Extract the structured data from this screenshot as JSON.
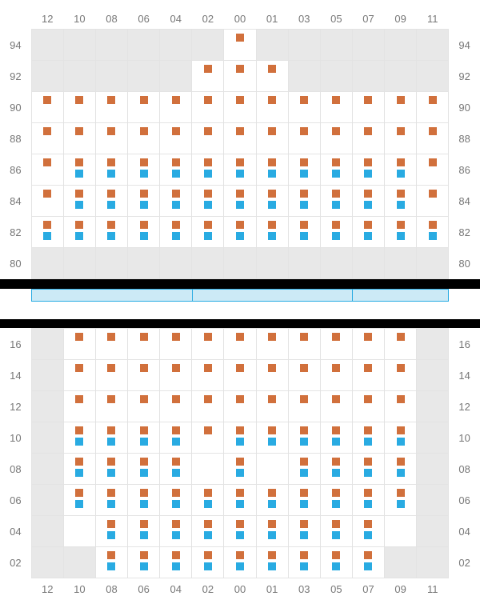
{
  "colors": {
    "orange": "#d1703c",
    "blue": "#29abe2",
    "empty": "#e8e8e8",
    "grid": "#e3e3e3",
    "bar": "#cceaf6",
    "text": "#777"
  },
  "marker": {
    "w": 10,
    "h": 10
  },
  "cell": {
    "w": 40,
    "h": 38
  },
  "columns": [
    "12",
    "10",
    "08",
    "06",
    "04",
    "02",
    "00",
    "01",
    "03",
    "05",
    "07",
    "09",
    "11"
  ],
  "upper": {
    "rows": [
      "94",
      "92",
      "90",
      "88",
      "86",
      "84",
      "82",
      "80"
    ],
    "cells": [
      [
        "E",
        "E",
        "E",
        "E",
        "E",
        "E",
        "O",
        "E",
        "E",
        "E",
        "E",
        "E",
        "E"
      ],
      [
        "E",
        "E",
        "E",
        "E",
        "E",
        "O",
        "O",
        "O",
        "E",
        "E",
        "E",
        "E",
        "E"
      ],
      [
        "O",
        "O",
        "O",
        "O",
        "O",
        "O",
        "O",
        "O",
        "O",
        "O",
        "O",
        "O",
        "O"
      ],
      [
        "O",
        "O",
        "O",
        "O",
        "O",
        "O",
        "O",
        "O",
        "O",
        "O",
        "O",
        "O",
        "O"
      ],
      [
        "O",
        "OB",
        "OB",
        "OB",
        "OB",
        "OB",
        "OB",
        "OB",
        "OB",
        "OB",
        "OB",
        "OB",
        "O"
      ],
      [
        "O",
        "OB",
        "OB",
        "OB",
        "OB",
        "OB",
        "OB",
        "OB",
        "OB",
        "OB",
        "OB",
        "OB",
        "O"
      ],
      [
        "OB",
        "OB",
        "OB",
        "OB",
        "OB",
        "OB",
        "OB",
        "OB",
        "OB",
        "OB",
        "OB",
        "OB",
        "OB"
      ],
      [
        "E",
        "E",
        "E",
        "E",
        "E",
        "E",
        "E",
        "E",
        "E",
        "E",
        "E",
        "E",
        "E"
      ]
    ]
  },
  "barSegments": 3,
  "lower": {
    "rows": [
      "16",
      "14",
      "12",
      "10",
      "08",
      "06",
      "04",
      "02"
    ],
    "cells": [
      [
        "E",
        "O",
        "O",
        "O",
        "O",
        "O",
        "O",
        "O",
        "O",
        "O",
        "O",
        "O",
        "E"
      ],
      [
        "E",
        "O",
        "O",
        "O",
        "O",
        "O",
        "O",
        "O",
        "O",
        "O",
        "O",
        "O",
        "E"
      ],
      [
        "E",
        "O",
        "O",
        "O",
        "O",
        "O",
        "O",
        "O",
        "O",
        "O",
        "O",
        "O",
        "E"
      ],
      [
        "E",
        "OB",
        "OB",
        "OB",
        "OB",
        "O",
        "OB",
        "OB",
        "OB",
        "OB",
        "OB",
        "OB",
        "E"
      ],
      [
        "E",
        "OB",
        "OB",
        "OB",
        "OB",
        "W",
        "OB",
        "W",
        "OB",
        "OB",
        "OB",
        "OB",
        "E"
      ],
      [
        "E",
        "OB",
        "OB",
        "OB",
        "OB",
        "OB",
        "OB",
        "OB",
        "OB",
        "OB",
        "OB",
        "OB",
        "E"
      ],
      [
        "E",
        "W",
        "OB",
        "OB",
        "OB",
        "OB",
        "OB",
        "OB",
        "OB",
        "OB",
        "OB",
        "W",
        "E"
      ],
      [
        "E",
        "E",
        "OB",
        "OB",
        "OB",
        "OB",
        "OB",
        "OB",
        "OB",
        "OB",
        "OB",
        "E",
        "E"
      ]
    ]
  }
}
